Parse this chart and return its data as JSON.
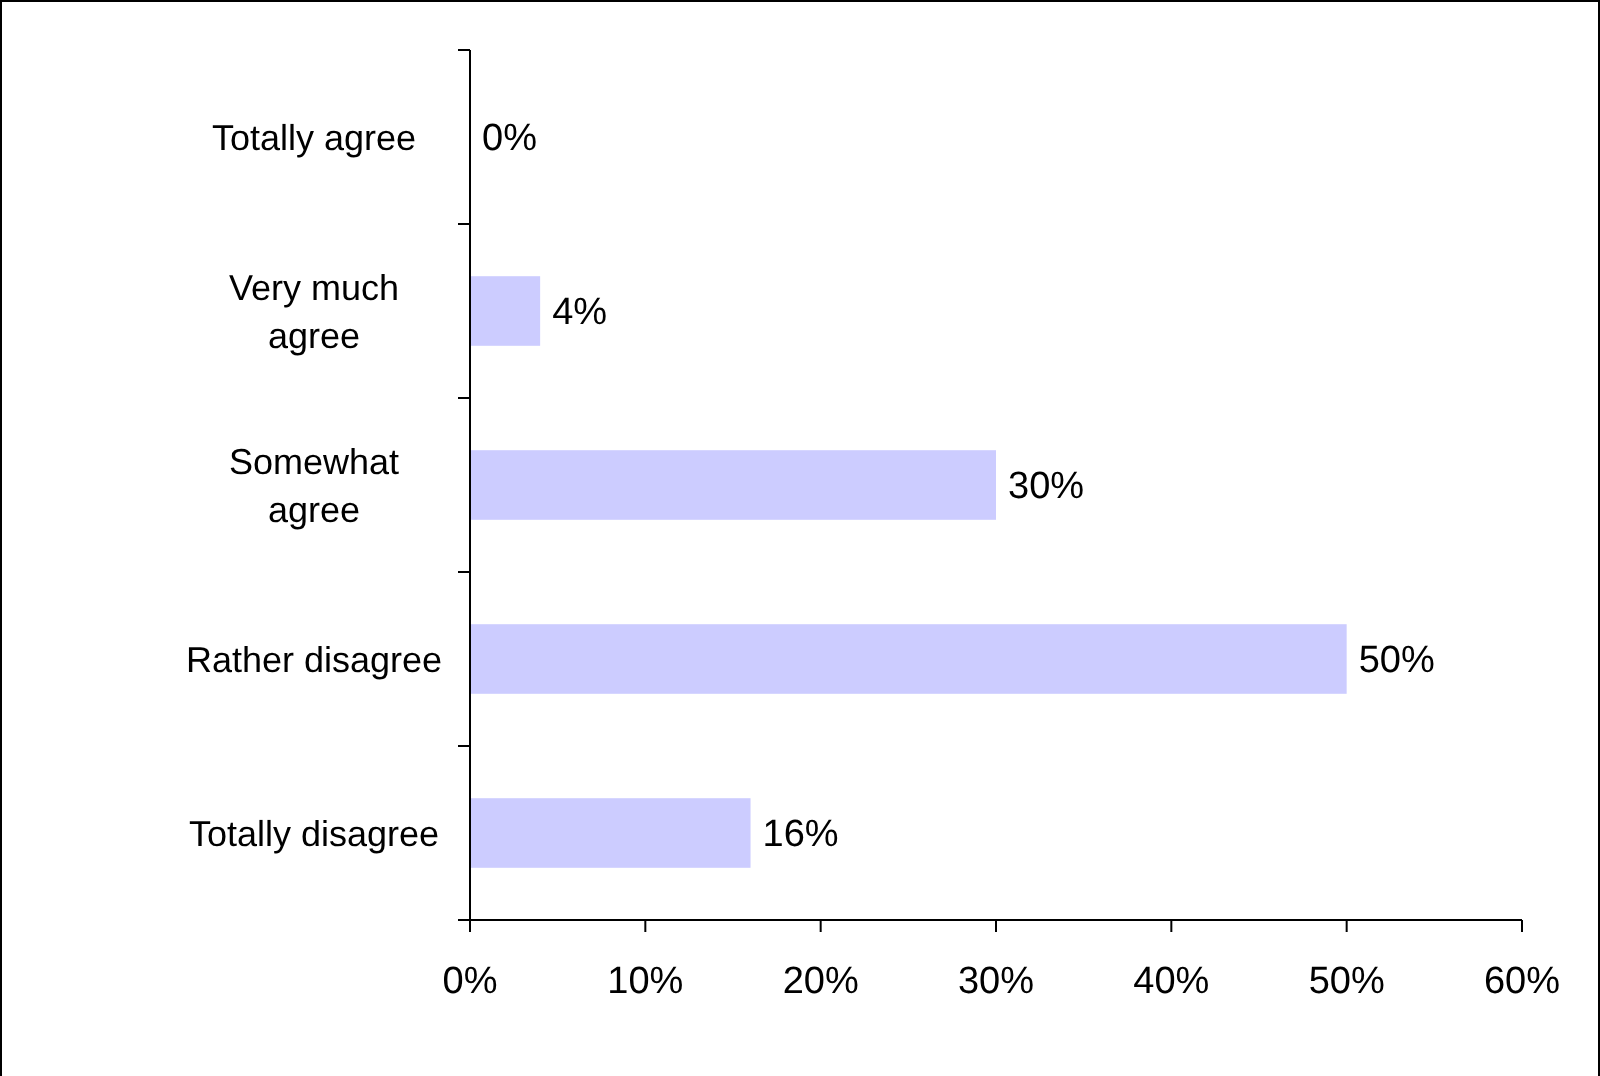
{
  "chart_data": {
    "type": "bar",
    "orientation": "horizontal",
    "categories": [
      "Totally agree",
      "Very much\nagree",
      "Somewhat\nagree",
      "Rather disagree",
      "Totally disagree"
    ],
    "values": [
      0,
      4,
      30,
      50,
      16
    ],
    "color": "#ccccff",
    "value_labels": [
      "0%",
      "4%",
      "30%",
      "50%",
      "16%"
    ],
    "xlim": [
      0,
      60
    ],
    "xticks": [
      {
        "value": 0,
        "label": "0%"
      },
      {
        "value": 10,
        "label": "10%"
      },
      {
        "value": 20,
        "label": "20%"
      },
      {
        "value": 30,
        "label": "30%"
      },
      {
        "value": 40,
        "label": "40%"
      },
      {
        "value": 50,
        "label": "50%"
      },
      {
        "value": 60,
        "label": "60%"
      }
    ],
    "grid": false
  }
}
